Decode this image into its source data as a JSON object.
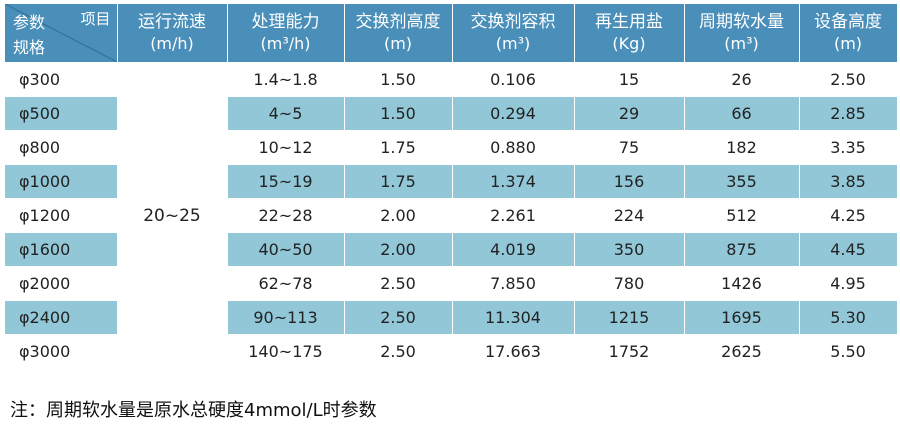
{
  "header": {
    "corner_top": "项目",
    "corner_mid": "参数",
    "corner_bottom": "规格",
    "columns": [
      {
        "label": "运行流速",
        "unit": "(m/h)"
      },
      {
        "label": "处理能力",
        "unit": "(m³/h)"
      },
      {
        "label": "交换剂高度",
        "unit": "(m)"
      },
      {
        "label": "交换剂容积",
        "unit": "(m³)"
      },
      {
        "label": "再生用盐",
        "unit": "(Kg)"
      },
      {
        "label": "周期软水量",
        "unit": "(m³)"
      },
      {
        "label": "设备高度",
        "unit": "(m)"
      }
    ]
  },
  "speed": "20~25",
  "rows": [
    {
      "spec": "φ300",
      "capacity": "1.4~1.8",
      "height": "1.50",
      "volume": "0.106",
      "salt": "15",
      "water": "26",
      "equip": "2.50"
    },
    {
      "spec": "φ500",
      "capacity": "4~5",
      "height": "1.50",
      "volume": "0.294",
      "salt": "29",
      "water": "66",
      "equip": "2.85"
    },
    {
      "spec": "φ800",
      "capacity": "10~12",
      "height": "1.75",
      "volume": "0.880",
      "salt": "75",
      "water": "182",
      "equip": "3.35"
    },
    {
      "spec": "φ1000",
      "capacity": "15~19",
      "height": "1.75",
      "volume": "1.374",
      "salt": "156",
      "water": "355",
      "equip": "3.85"
    },
    {
      "spec": "φ1200",
      "capacity": "22~28",
      "height": "2.00",
      "volume": "2.261",
      "salt": "224",
      "water": "512",
      "equip": "4.25"
    },
    {
      "spec": "φ1600",
      "capacity": "40~50",
      "height": "2.00",
      "volume": "4.019",
      "salt": "350",
      "water": "875",
      "equip": "4.45"
    },
    {
      "spec": "φ2000",
      "capacity": "62~78",
      "height": "2.50",
      "volume": "7.850",
      "salt": "780",
      "water": "1426",
      "equip": "4.95"
    },
    {
      "spec": "φ2400",
      "capacity": "90~113",
      "height": "2.50",
      "volume": "11.304",
      "salt": "1215",
      "water": "1695",
      "equip": "5.30"
    },
    {
      "spec": "φ3000",
      "capacity": "140~175",
      "height": "2.50",
      "volume": "17.663",
      "salt": "1752",
      "water": "2625",
      "equip": "5.50"
    }
  ],
  "note": "注：周期软水量是原水总硬度4mmol/L时参数",
  "colors": {
    "header_bg": "#4a8fb9",
    "alt_row_bg": "#92c7d8",
    "plain_row_bg": "#ffffff"
  }
}
